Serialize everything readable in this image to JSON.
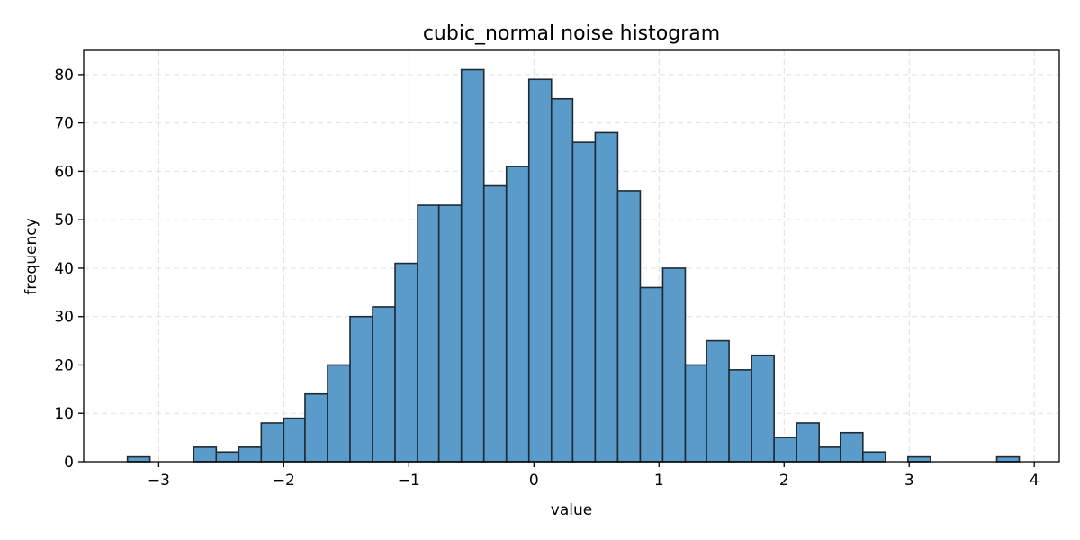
{
  "chart_data": {
    "type": "bar",
    "title": "cubic_normal noise histogram",
    "xlabel": "value",
    "ylabel": "frequency",
    "xlim": [
      -3.6,
      4.2
    ],
    "ylim": [
      0,
      85
    ],
    "grid": true,
    "colors": {
      "bar_fill": "#5b9bc9",
      "bar_edge": "#1f2a33",
      "grid": "#e0e0e0"
    },
    "x_ticks": [
      -3,
      -2,
      -1,
      0,
      1,
      2,
      3,
      4
    ],
    "x_tick_labels": [
      "−3",
      "−2",
      "−1",
      "0",
      "1",
      "2",
      "3",
      "4"
    ],
    "y_ticks": [
      0,
      10,
      20,
      30,
      40,
      50,
      60,
      70,
      80
    ],
    "y_tick_labels": [
      "0",
      "10",
      "20",
      "30",
      "40",
      "50",
      "60",
      "70",
      "80"
    ],
    "bin_edges": [
      -3.25,
      -3.07,
      -2.89,
      -2.72,
      -2.54,
      -2.36,
      -2.18,
      -2.0,
      -1.83,
      -1.65,
      -1.47,
      -1.29,
      -1.11,
      -0.93,
      -0.76,
      -0.58,
      -0.4,
      -0.22,
      -0.04,
      0.14,
      0.31,
      0.49,
      0.67,
      0.85,
      1.03,
      1.21,
      1.38,
      1.56,
      1.74,
      1.92,
      2.1,
      2.28,
      2.45,
      2.63,
      2.81,
      2.99,
      3.17,
      3.34,
      3.52,
      3.7,
      3.88
    ],
    "counts": [
      1,
      0,
      0,
      3,
      2,
      3,
      8,
      9,
      14,
      20,
      30,
      32,
      41,
      53,
      53,
      81,
      57,
      61,
      79,
      75,
      66,
      68,
      56,
      36,
      40,
      20,
      25,
      19,
      22,
      5,
      8,
      3,
      6,
      2,
      0,
      1,
      0,
      0,
      0,
      1
    ]
  }
}
